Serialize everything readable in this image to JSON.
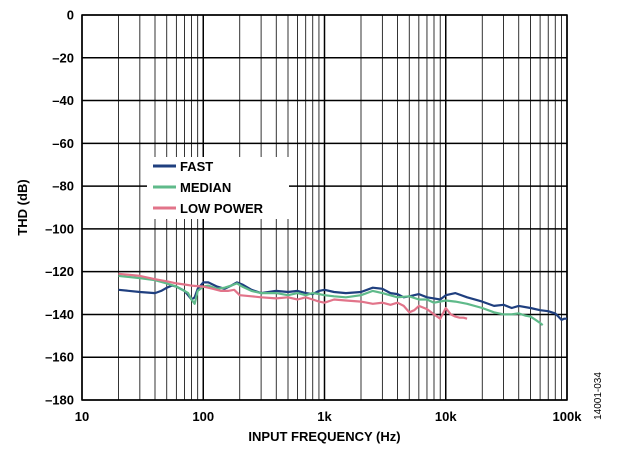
{
  "figure_id": "14001-034",
  "chart_data": {
    "type": "line",
    "title": "",
    "xlabel": "INPUT FREQUENCY (Hz)",
    "ylabel": "THD (dB)",
    "x_scale": "log",
    "xlim": [
      10,
      100000
    ],
    "ylim": [
      -180,
      0
    ],
    "x_ticks": [
      10,
      100,
      1000,
      10000,
      100000
    ],
    "x_tick_labels": [
      "10",
      "100",
      "1k",
      "10k",
      "100k"
    ],
    "y_ticks": [
      0,
      -20,
      -40,
      -60,
      -80,
      -100,
      -120,
      -140,
      -160,
      -180
    ],
    "y_tick_labels": [
      "0",
      "–20",
      "–40",
      "–60",
      "–80",
      "–100",
      "–120",
      "–140",
      "–160",
      "–180"
    ],
    "grid": true,
    "legend_position": "middle-left",
    "series": [
      {
        "name": "FAST",
        "color": "#1f3f7f",
        "points": [
          [
            20,
            -128.5
          ],
          [
            30,
            -129.5
          ],
          [
            40,
            -130
          ],
          [
            45,
            -129
          ],
          [
            50,
            -127.5
          ],
          [
            55,
            -126.5
          ],
          [
            60,
            -127
          ],
          [
            70,
            -129
          ],
          [
            75,
            -131
          ],
          [
            80,
            -133
          ],
          [
            85,
            -132
          ],
          [
            90,
            -128
          ],
          [
            100,
            -125
          ],
          [
            110,
            -125
          ],
          [
            130,
            -127
          ],
          [
            150,
            -128
          ],
          [
            170,
            -126.5
          ],
          [
            190,
            -125
          ],
          [
            210,
            -126
          ],
          [
            250,
            -128.5
          ],
          [
            300,
            -130
          ],
          [
            400,
            -129
          ],
          [
            500,
            -129.5
          ],
          [
            600,
            -129
          ],
          [
            700,
            -130
          ],
          [
            800,
            -130.5
          ],
          [
            900,
            -129
          ],
          [
            1000,
            -128.5
          ],
          [
            1200,
            -129.5
          ],
          [
            1500,
            -130
          ],
          [
            2000,
            -129.5
          ],
          [
            2500,
            -127.5
          ],
          [
            3000,
            -128
          ],
          [
            3500,
            -130
          ],
          [
            4000,
            -130.5
          ],
          [
            4500,
            -132
          ],
          [
            5000,
            -131.5
          ],
          [
            6000,
            -130.5
          ],
          [
            7000,
            -132
          ],
          [
            8000,
            -132.5
          ],
          [
            9000,
            -133
          ],
          [
            10000,
            -131
          ],
          [
            12000,
            -130
          ],
          [
            15000,
            -132
          ],
          [
            20000,
            -134
          ],
          [
            25000,
            -136
          ],
          [
            30000,
            -135.5
          ],
          [
            35000,
            -137
          ],
          [
            40000,
            -136
          ],
          [
            50000,
            -137
          ],
          [
            60000,
            -138
          ],
          [
            70000,
            -138.5
          ],
          [
            80000,
            -139.5
          ],
          [
            85000,
            -141
          ],
          [
            90000,
            -142.5
          ],
          [
            95000,
            -142
          ],
          [
            100000,
            -142
          ]
        ]
      },
      {
        "name": "MEDIAN",
        "color": "#5fba8a",
        "points": [
          [
            20,
            -122
          ],
          [
            30,
            -123
          ],
          [
            40,
            -124
          ],
          [
            50,
            -125.5
          ],
          [
            60,
            -127
          ],
          [
            70,
            -129
          ],
          [
            75,
            -130
          ],
          [
            80,
            -133
          ],
          [
            85,
            -135
          ],
          [
            90,
            -129
          ],
          [
            100,
            -127
          ],
          [
            110,
            -126.5
          ],
          [
            130,
            -128
          ],
          [
            150,
            -127.5
          ],
          [
            170,
            -126.5
          ],
          [
            190,
            -125.5
          ],
          [
            210,
            -127
          ],
          [
            250,
            -129
          ],
          [
            300,
            -130
          ],
          [
            400,
            -130
          ],
          [
            500,
            -131
          ],
          [
            600,
            -130
          ],
          [
            700,
            -131
          ],
          [
            800,
            -130
          ],
          [
            900,
            -130.5
          ],
          [
            1000,
            -131
          ],
          [
            1200,
            -131.5
          ],
          [
            1500,
            -132
          ],
          [
            2000,
            -131
          ],
          [
            2500,
            -129
          ],
          [
            3000,
            -130
          ],
          [
            4000,
            -132
          ],
          [
            5000,
            -131.5
          ],
          [
            6000,
            -133
          ],
          [
            7000,
            -133
          ],
          [
            8000,
            -134.5
          ],
          [
            10000,
            -133.5
          ],
          [
            12000,
            -134
          ],
          [
            15000,
            -135
          ],
          [
            20000,
            -137
          ],
          [
            25000,
            -139
          ],
          [
            30000,
            -140
          ],
          [
            35000,
            -140
          ],
          [
            40000,
            -139.5
          ],
          [
            45000,
            -140.5
          ],
          [
            50000,
            -141
          ],
          [
            55000,
            -142.5
          ],
          [
            60000,
            -144
          ],
          [
            63000,
            -145
          ]
        ]
      },
      {
        "name": "LOW POWER",
        "color": "#e2748a",
        "points": [
          [
            20,
            -121
          ],
          [
            30,
            -122
          ],
          [
            40,
            -123.5
          ],
          [
            50,
            -124.5
          ],
          [
            60,
            -125.5
          ],
          [
            70,
            -126
          ],
          [
            80,
            -126.5
          ],
          [
            100,
            -127
          ],
          [
            120,
            -128
          ],
          [
            140,
            -129
          ],
          [
            160,
            -129
          ],
          [
            180,
            -128.5
          ],
          [
            200,
            -131
          ],
          [
            250,
            -131.5
          ],
          [
            300,
            -132
          ],
          [
            400,
            -132.5
          ],
          [
            500,
            -132
          ],
          [
            600,
            -133
          ],
          [
            700,
            -132
          ],
          [
            800,
            -133
          ],
          [
            900,
            -134
          ],
          [
            1000,
            -134.5
          ],
          [
            1200,
            -133
          ],
          [
            1500,
            -133.5
          ],
          [
            2000,
            -134
          ],
          [
            2500,
            -135
          ],
          [
            3000,
            -134.5
          ],
          [
            3500,
            -135.5
          ],
          [
            4000,
            -134.5
          ],
          [
            4500,
            -136
          ],
          [
            5000,
            -139
          ],
          [
            5500,
            -138
          ],
          [
            6000,
            -136
          ],
          [
            7000,
            -137.5
          ],
          [
            8000,
            -140
          ],
          [
            9000,
            -142
          ],
          [
            10000,
            -137
          ],
          [
            11000,
            -140
          ],
          [
            12000,
            -141
          ],
          [
            13000,
            -141.5
          ],
          [
            14000,
            -141.5
          ],
          [
            15000,
            -142
          ]
        ]
      }
    ]
  }
}
